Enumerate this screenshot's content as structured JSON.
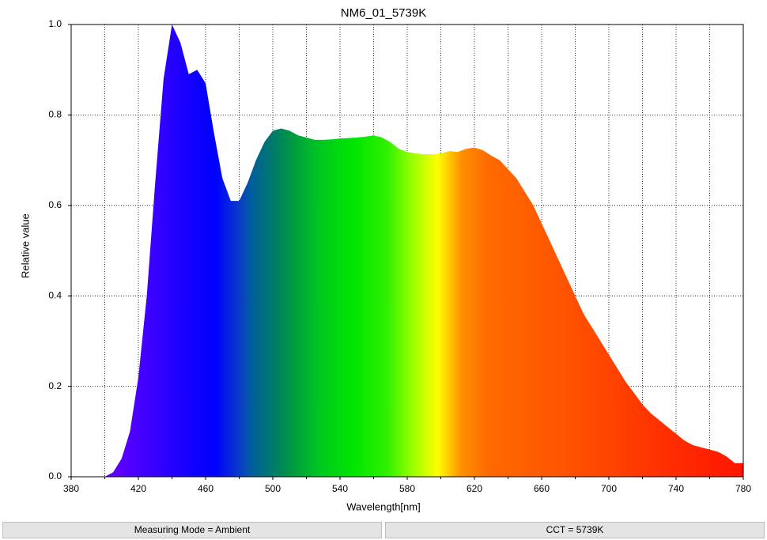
{
  "chart_data": {
    "type": "area",
    "title": "NM6_01_5739K",
    "x_label": "Wavelength[nm]",
    "y_label": "Relative value",
    "x": [
      380,
      385,
      390,
      395,
      400,
      405,
      410,
      415,
      420,
      425,
      430,
      435,
      440,
      445,
      450,
      455,
      460,
      465,
      470,
      475,
      480,
      485,
      490,
      495,
      500,
      505,
      510,
      515,
      520,
      525,
      530,
      535,
      540,
      545,
      550,
      555,
      560,
      565,
      570,
      575,
      580,
      585,
      590,
      595,
      600,
      605,
      610,
      615,
      620,
      625,
      630,
      635,
      640,
      645,
      650,
      655,
      660,
      665,
      670,
      675,
      680,
      685,
      690,
      695,
      700,
      705,
      710,
      715,
      720,
      725,
      730,
      735,
      740,
      745,
      750,
      755,
      760,
      765,
      770,
      775,
      780
    ],
    "values": [
      0,
      0,
      0,
      0,
      0,
      0.01,
      0.04,
      0.1,
      0.22,
      0.4,
      0.65,
      0.88,
      1.0,
      0.96,
      0.89,
      0.9,
      0.87,
      0.76,
      0.66,
      0.61,
      0.61,
      0.65,
      0.7,
      0.74,
      0.765,
      0.77,
      0.765,
      0.755,
      0.75,
      0.745,
      0.745,
      0.746,
      0.748,
      0.749,
      0.75,
      0.752,
      0.755,
      0.75,
      0.74,
      0.725,
      0.718,
      0.715,
      0.713,
      0.713,
      0.715,
      0.72,
      0.718,
      0.725,
      0.728,
      0.722,
      0.71,
      0.7,
      0.68,
      0.66,
      0.63,
      0.6,
      0.56,
      0.52,
      0.48,
      0.44,
      0.4,
      0.36,
      0.33,
      0.3,
      0.27,
      0.24,
      0.21,
      0.185,
      0.16,
      0.14,
      0.125,
      0.11,
      0.095,
      0.08,
      0.07,
      0.065,
      0.06,
      0.055,
      0.045,
      0.03,
      0.03
    ],
    "xlim": [
      380,
      780
    ],
    "xticks": [
      380,
      420,
      460,
      500,
      540,
      580,
      620,
      660,
      700,
      740,
      780
    ],
    "xminor_ticks": [
      400,
      440,
      480,
      520,
      560,
      600,
      640,
      680,
      720,
      760
    ],
    "ylim": [
      0,
      1
    ],
    "yticks": [
      {
        "value": 0,
        "label": "0.0"
      },
      0.2,
      0.4,
      0.6,
      0.8,
      {
        "value": 1,
        "label": "1.0"
      }
    ],
    "grid": true
  },
  "status": {
    "measuring_mode": "Measuring Mode = Ambient",
    "cct": "CCT = 5739K"
  }
}
